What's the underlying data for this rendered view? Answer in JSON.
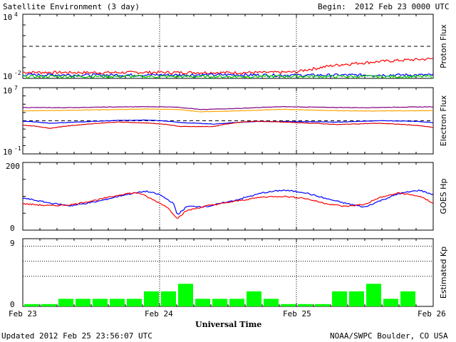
{
  "header": {
    "title": "Satellite Environment (3 day)",
    "begin_label": "Begin:",
    "begin_value": "2012 Feb 23 0000 UTC"
  },
  "footer": {
    "updated": "Updated 2012 Feb 25 23:56:07 UTC",
    "source": "NOAA/SWPC Boulder, CO USA"
  },
  "xaxis": {
    "label": "Universal Time",
    "ticks": [
      "Feb 23",
      "Feb 24",
      "Feb 25",
      "Feb 26"
    ]
  },
  "chart_data": [
    {
      "type": "line",
      "ylabel": "Proton Flux",
      "yscale": "log",
      "ylim": [
        0.01,
        10000
      ],
      "ytick_base": "10",
      "yticks": [
        {
          "exp": "4"
        },
        {
          "exp": "-2"
        }
      ],
      "threshold": 10,
      "x_days": [
        0,
        3
      ],
      "series": [
        {
          "color": "#ff0000",
          "x": [
            0,
            0.3,
            0.6,
            0.9,
            1.2,
            1.5,
            1.8,
            2.0,
            2.15,
            2.3,
            2.5,
            2.7,
            2.9,
            3.0
          ],
          "values": [
            0.038,
            0.036,
            0.035,
            0.037,
            0.036,
            0.035,
            0.036,
            0.04,
            0.09,
            0.18,
            0.3,
            0.45,
            0.6,
            0.7
          ]
        },
        {
          "color": "#0000ff",
          "x": [
            0,
            0.5,
            1.0,
            1.5,
            2.0,
            2.5,
            3.0
          ],
          "values": [
            0.022,
            0.021,
            0.021,
            0.022,
            0.02,
            0.021,
            0.021
          ]
        },
        {
          "color": "#00cc00",
          "x": [
            0,
            0.5,
            1.0,
            1.5,
            2.0,
            2.5,
            3.0
          ],
          "values": [
            0.015,
            0.016,
            0.015,
            0.015,
            0.016,
            0.015,
            0.015
          ]
        }
      ]
    },
    {
      "type": "line",
      "ylabel": "Electron Flux",
      "yscale": "log",
      "ylim": [
        0.1,
        10000000
      ],
      "ytick_base": "10",
      "yticks": [
        {
          "exp": "7"
        },
        {
          "exp": "-1"
        }
      ],
      "threshold": 1000,
      "x_days": [
        0,
        3
      ],
      "series": [
        {
          "color": "#800080",
          "x": [
            0,
            0.3,
            0.6,
            0.9,
            1.1,
            1.3,
            1.6,
            1.9,
            2.2,
            2.5,
            2.8,
            3.0
          ],
          "values": [
            40000,
            38000,
            45000,
            50000,
            47000,
            22000,
            32000,
            50000,
            42000,
            38000,
            45000,
            48000
          ]
        },
        {
          "color": "#ffa500",
          "x": [
            0,
            0.3,
            0.6,
            0.9,
            1.1,
            1.3,
            1.6,
            1.9,
            2.2,
            2.5,
            2.8,
            3.0
          ],
          "values": [
            16000,
            18000,
            22000,
            26000,
            24000,
            12000,
            16000,
            24000,
            18000,
            15000,
            16000,
            17000
          ]
        },
        {
          "color": "#0000ff",
          "x": [
            0,
            0.2,
            0.4,
            0.7,
            0.95,
            1.15,
            1.4,
            1.7,
            2.0,
            2.3,
            2.6,
            2.85,
            3.0
          ],
          "values": [
            900,
            500,
            700,
            1100,
            1200,
            600,
            400,
            800,
            800,
            700,
            1000,
            900,
            600
          ]
        },
        {
          "color": "#dd0000",
          "x": [
            0,
            0.2,
            0.4,
            0.7,
            0.95,
            1.15,
            1.4,
            1.7,
            2.0,
            2.3,
            2.6,
            2.85,
            3.0
          ],
          "values": [
            300,
            120,
            300,
            700,
            500,
            200,
            200,
            900,
            600,
            350,
            500,
            300,
            150
          ]
        }
      ]
    },
    {
      "type": "line",
      "ylabel": "GOES Hp",
      "ylim": [
        0,
        200
      ],
      "yticks": [
        "200",
        "0"
      ],
      "x_days": [
        0,
        3
      ],
      "series": [
        {
          "color": "#0000ff",
          "x": [
            0,
            0.2,
            0.35,
            0.55,
            0.75,
            0.9,
            1.0,
            1.1,
            1.13,
            1.2,
            1.35,
            1.55,
            1.75,
            1.9,
            2.05,
            2.2,
            2.35,
            2.5,
            2.6,
            2.75,
            2.9,
            3.0
          ],
          "values": [
            95,
            80,
            72,
            85,
            105,
            115,
            105,
            80,
            45,
            70,
            70,
            88,
            110,
            118,
            112,
            95,
            80,
            68,
            85,
            108,
            118,
            105
          ]
        },
        {
          "color": "#ff0000",
          "x": [
            0,
            0.2,
            0.35,
            0.55,
            0.75,
            0.85,
            0.95,
            1.05,
            1.13,
            1.2,
            1.35,
            1.55,
            1.75,
            1.9,
            2.05,
            2.2,
            2.35,
            2.5,
            2.6,
            2.75,
            2.9,
            3.0
          ],
          "values": [
            78,
            72,
            75,
            90,
            108,
            110,
            90,
            70,
            35,
            58,
            72,
            85,
            98,
            100,
            95,
            80,
            70,
            76,
            95,
            110,
            100,
            80
          ]
        }
      ]
    },
    {
      "type": "bar",
      "ylabel": "Estimated Kp",
      "ylim": [
        0,
        9
      ],
      "yticks": [
        "9",
        "0"
      ],
      "color": "#00ff00",
      "gridlines": [
        4,
        6,
        8
      ],
      "values": [
        0.3,
        0.3,
        1,
        1,
        1,
        1,
        1,
        2,
        2,
        3,
        1,
        1,
        1,
        2,
        1,
        0.3,
        0.3,
        0.3,
        2,
        2,
        3,
        1,
        2,
        0
      ]
    }
  ]
}
